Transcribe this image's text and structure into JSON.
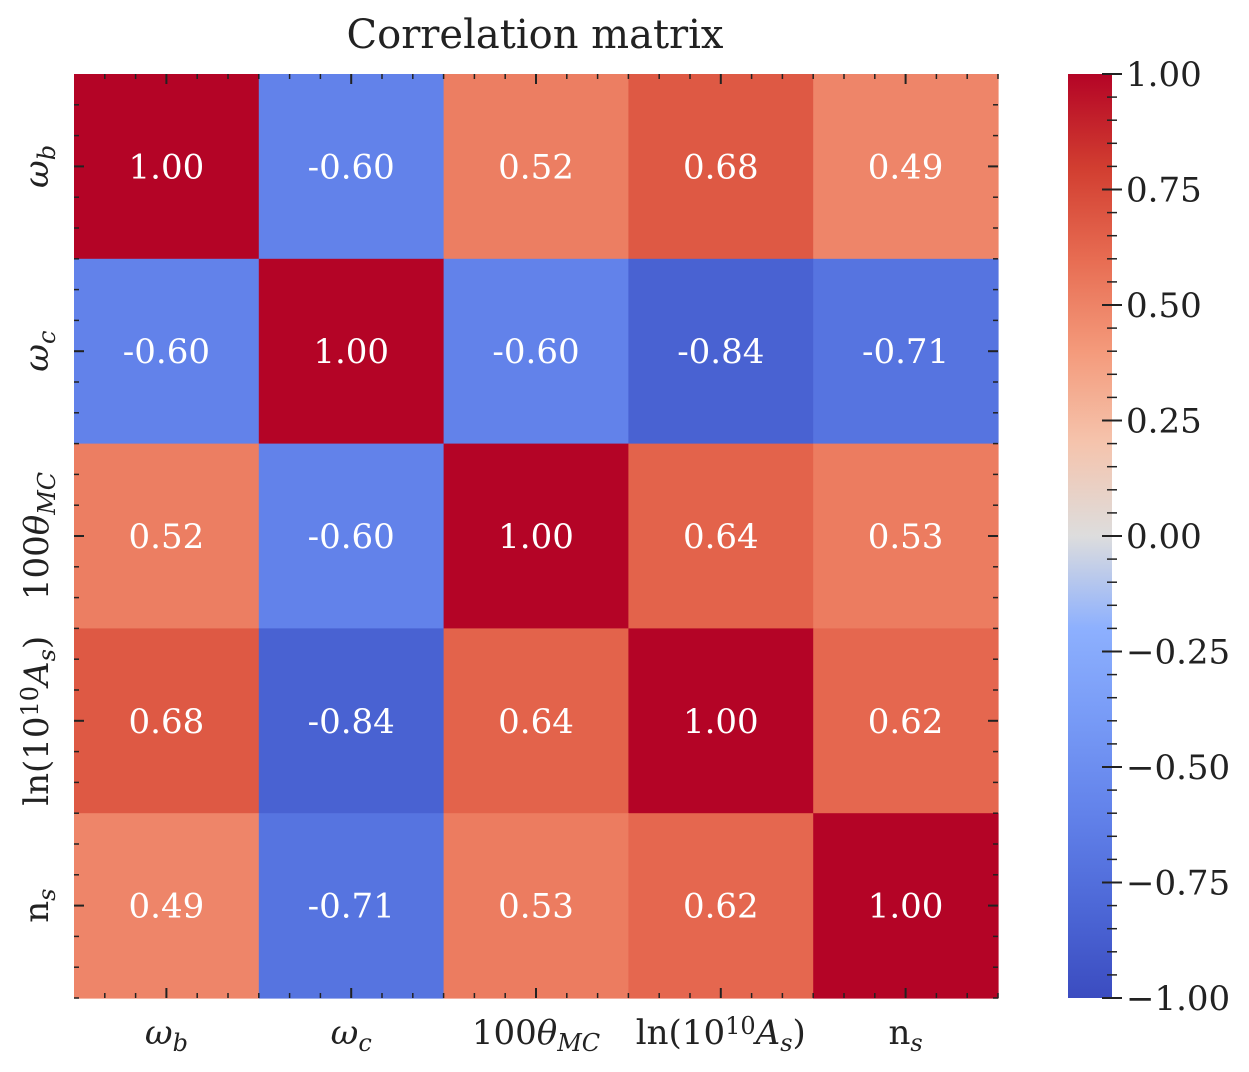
{
  "chart_data": {
    "type": "heatmap",
    "title": "Correlation matrix",
    "x_labels": [
      {
        "text": "ω",
        "sub": "b",
        "sup": ""
      },
      {
        "text": "ω",
        "sub": "c",
        "sup": ""
      },
      {
        "text": "100θ",
        "sub": "MC",
        "sup": ""
      },
      {
        "text": "ln(10",
        "sup": "10",
        "after": "A",
        "sub": "s",
        "close": ")"
      },
      {
        "text": "n",
        "sub": "s",
        "sup": ""
      }
    ],
    "y_labels": [
      {
        "text": "ω",
        "sub": "b",
        "sup": ""
      },
      {
        "text": "ω",
        "sub": "c",
        "sup": ""
      },
      {
        "text": "100θ",
        "sub": "MC",
        "sup": ""
      },
      {
        "text": "ln(10",
        "sup": "10",
        "after": "A",
        "sub": "s",
        "close": ")"
      },
      {
        "text": "n",
        "sub": "s",
        "sup": ""
      }
    ],
    "values": [
      [
        1.0,
        -0.6,
        0.52,
        0.68,
        0.49
      ],
      [
        -0.6,
        1.0,
        -0.6,
        -0.84,
        -0.71
      ],
      [
        0.52,
        -0.6,
        1.0,
        0.64,
        0.53
      ],
      [
        0.68,
        -0.84,
        0.64,
        1.0,
        0.62
      ],
      [
        0.49,
        -0.71,
        0.53,
        0.62,
        1.0
      ]
    ],
    "cell_text": [
      [
        "1.00",
        "-0.60",
        "0.52",
        "0.68",
        "0.49"
      ],
      [
        "-0.60",
        "1.00",
        "-0.60",
        "-0.84",
        "-0.71"
      ],
      [
        "0.52",
        "-0.60",
        "1.00",
        "0.64",
        "0.53"
      ],
      [
        "0.68",
        "-0.84",
        "0.64",
        "1.00",
        "0.62"
      ],
      [
        "0.49",
        "-0.71",
        "0.53",
        "0.62",
        "1.00"
      ]
    ],
    "colormap": "coolwarm",
    "vmin": -1.0,
    "vmax": 1.0,
    "colorbar_ticks": [
      {
        "value": 1.0,
        "label": "1.00"
      },
      {
        "value": 0.75,
        "label": "0.75"
      },
      {
        "value": 0.5,
        "label": "0.50"
      },
      {
        "value": 0.25,
        "label": "0.25"
      },
      {
        "value": 0.0,
        "label": "0.00"
      },
      {
        "value": -0.25,
        "label": "−0.25"
      },
      {
        "value": -0.5,
        "label": "−0.50"
      },
      {
        "value": -0.75,
        "label": "−0.75"
      },
      {
        "value": -1.0,
        "label": "−1.00"
      }
    ]
  }
}
